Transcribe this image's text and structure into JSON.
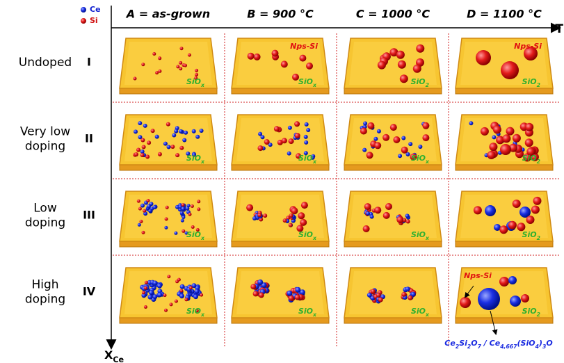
{
  "legend": [
    {
      "label": "Ce"
    },
    {
      "label": "Si"
    }
  ],
  "columns": [
    "A = as-grown",
    "B = 900 °C",
    "C = 1000 °C",
    "D = 1100 °C"
  ],
  "axis": {
    "x": "T",
    "y": {
      "base": "X",
      "sub": "Ce"
    }
  },
  "rows": [
    {
      "label": [
        "Undoped"
      ],
      "numeral": "I",
      "panels": [
        {
          "matrix": {
            "base": "SiO",
            "sub": "x"
          }
        },
        {
          "matrix": {
            "base": "SiO",
            "sub": "x"
          },
          "np": "Nps-Si"
        },
        {
          "matrix": {
            "base": "SiO",
            "sub": "2"
          }
        },
        {
          "matrix": {
            "base": "SiO",
            "sub": "2"
          },
          "np": "Nps-Si"
        }
      ]
    },
    {
      "label": [
        "Very low",
        "doping"
      ],
      "numeral": "II",
      "panels": [
        {
          "matrix": {
            "base": "SiO",
            "sub": "x"
          }
        },
        {
          "matrix": {
            "base": "SiO",
            "sub": "x"
          }
        },
        {
          "matrix": {
            "base": "SiO",
            "sub": "x"
          }
        },
        {
          "matrix": {
            "base": "SiO",
            "sub": "2"
          }
        }
      ]
    },
    {
      "label": [
        "Low",
        "doping"
      ],
      "numeral": "III",
      "panels": [
        {
          "matrix": {
            "base": "SiO",
            "sub": "x"
          }
        },
        {
          "matrix": {
            "base": "SiO",
            "sub": "x"
          }
        },
        {
          "matrix": {
            "base": "SiO",
            "sub": "x"
          }
        },
        {
          "matrix": {
            "base": "SiO",
            "sub": "2"
          }
        }
      ]
    },
    {
      "label": [
        "High",
        "doping"
      ],
      "numeral": "IV",
      "panels": [
        {
          "matrix": {
            "base": "SiO",
            "sub": "x"
          }
        },
        {
          "matrix": {
            "base": "SiO",
            "sub": "x"
          }
        },
        {
          "matrix": {
            "base": "SiO",
            "sub": "x"
          }
        },
        {
          "matrix": {
            "base": "SiO",
            "sub": "2"
          },
          "np": "Nps-Si"
        }
      ]
    }
  ],
  "formula": [
    {
      "t": "Ce"
    },
    {
      "s": "2"
    },
    {
      "t": "Si"
    },
    {
      "s": "2"
    },
    {
      "t": "O"
    },
    {
      "s": "7"
    },
    {
      "t": " / Ce"
    },
    {
      "s": "4,667"
    },
    {
      "t": "(SiO"
    },
    {
      "s": "4"
    },
    {
      "t": ")"
    },
    {
      "s": "3"
    },
    {
      "t": "O"
    }
  ]
}
